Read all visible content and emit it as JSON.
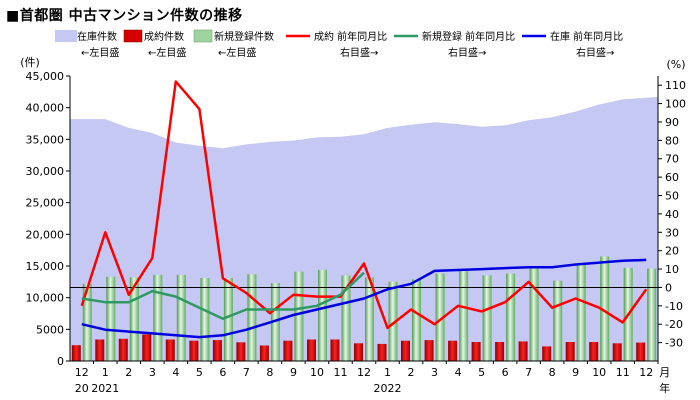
{
  "chart_data": {
    "type": "bar",
    "title": "■首都圏 中古マンション件数の推移",
    "left_axis": {
      "unit_label": "(件)",
      "ylim": [
        0,
        45000
      ],
      "ticks": [
        "0",
        "5000",
        "10,000",
        "15,000",
        "20,000",
        "25,000",
        "30,000",
        "35,000",
        "40,000",
        "45,000"
      ]
    },
    "right_axis": {
      "unit_label": "(%)",
      "ylim": [
        -40,
        115
      ],
      "ticks": [
        "-30",
        "-20",
        "-10",
        "0",
        "10",
        "20",
        "30",
        "40",
        "50",
        "60",
        "70",
        "80",
        "90",
        "100",
        "110"
      ]
    },
    "categories": [
      "12",
      "1",
      "2",
      "3",
      "4",
      "5",
      "6",
      "7",
      "8",
      "9",
      "10",
      "11",
      "12",
      "1",
      "2",
      "3",
      "4",
      "5",
      "6",
      "7",
      "8",
      "9",
      "10",
      "11",
      "12"
    ],
    "year_labels": [
      {
        "text": "20",
        "index": 0
      },
      {
        "text": "2021",
        "index": 1
      },
      {
        "text": "2022",
        "index": 13
      }
    ],
    "month_suffix": "月",
    "year_suffix": "年",
    "series": [
      {
        "name": "在庫件数",
        "note": "←左目盛",
        "kind": "area",
        "axis": "left",
        "color": "#c5c8f2",
        "values": [
          38200,
          38200,
          36800,
          36000,
          34500,
          34000,
          33600,
          34200,
          34600,
          34800,
          35300,
          35400,
          35800,
          36800,
          37300,
          37700,
          37400,
          37000,
          37200,
          38000,
          38500,
          39400,
          40500,
          41300,
          41700
        ]
      },
      {
        "name": "成約件数",
        "note": "←左目盛",
        "kind": "bar",
        "axis": "left",
        "color": "#d40000",
        "values": [
          2500,
          3400,
          3500,
          4200,
          3400,
          3200,
          3300,
          2950,
          2450,
          3200,
          3400,
          3400,
          2800,
          2700,
          3200,
          3300,
          3200,
          3000,
          3000,
          3100,
          2300,
          3000,
          3000,
          2800,
          2900
        ]
      },
      {
        "name": "新規登録件数",
        "note": "←左目盛",
        "kind": "bar",
        "axis": "left",
        "color": "#7fc47f",
        "values": [
          12200,
          13300,
          13200,
          13600,
          13600,
          13100,
          13100,
          13700,
          12300,
          14100,
          14400,
          13500,
          13200,
          12500,
          12900,
          13800,
          14200,
          13500,
          13800,
          15000,
          12700,
          15400,
          16500,
          14700,
          14600
        ]
      },
      {
        "name": "成約 前年同月比",
        "note": "右目盛→",
        "kind": "line",
        "axis": "right",
        "color": "#ff0000",
        "values": [
          -10,
          30,
          -4,
          16,
          112,
          97,
          5,
          -3,
          -14,
          -4,
          -5,
          -5,
          13,
          -22,
          -12,
          -20,
          -10,
          -13,
          -8,
          3,
          -11,
          -6,
          -11,
          -19,
          -1
        ]
      },
      {
        "name": "新規登録 前年同月比",
        "note": "右目盛→",
        "kind": "line",
        "axis": "right",
        "color": "#2e9a62",
        "values": [
          -6,
          -8,
          -8,
          -2,
          -5,
          -11,
          -17,
          -12,
          -12,
          -12,
          -10,
          -4,
          8,
          null,
          null,
          null,
          null,
          null,
          null,
          null,
          null,
          null,
          null,
          null,
          null
        ]
      },
      {
        "name": "在庫 前年同月比",
        "note": "右目盛→",
        "kind": "line",
        "axis": "right",
        "color": "#0000e0",
        "values": [
          -20,
          -23,
          -24,
          -25,
          -26,
          -27,
          -26,
          -23,
          -19,
          -15,
          -12,
          -9,
          -6,
          -1,
          2,
          9,
          9.5,
          10,
          10.5,
          11,
          11,
          12.5,
          13.5,
          14.5,
          15
        ]
      }
    ],
    "zero_reference_line": true,
    "grid": false,
    "legend_position": "top"
  }
}
